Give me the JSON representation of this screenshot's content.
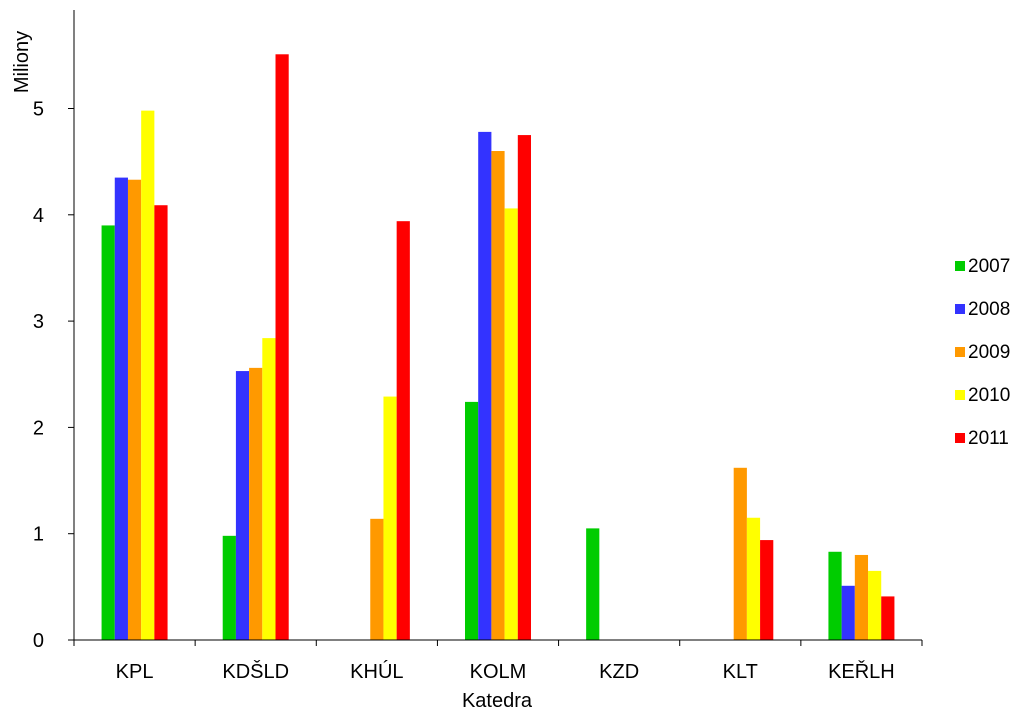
{
  "chart_data": {
    "type": "bar",
    "xlabel": "Katedra",
    "ylabel": "Miliony",
    "ylim": [
      0,
      6
    ],
    "yticks": [
      0,
      1,
      2,
      3,
      4,
      5
    ],
    "grid": false,
    "legend_position": "right",
    "categories": [
      "KPL",
      "KDŠLD",
      "KHÚL",
      "KOLM",
      "KZD",
      "KLT",
      "KEŘLH"
    ],
    "series": [
      {
        "name": "2007",
        "color": "#00cc00",
        "values": [
          3.9,
          0.98,
          0,
          2.24,
          1.05,
          0,
          0.83
        ]
      },
      {
        "name": "2008",
        "color": "#3333ff",
        "values": [
          4.35,
          2.53,
          0,
          4.78,
          0,
          0,
          0.51
        ]
      },
      {
        "name": "2009",
        "color": "#ff9900",
        "values": [
          4.33,
          2.56,
          1.14,
          4.6,
          0,
          1.62,
          0.8
        ]
      },
      {
        "name": "2010",
        "color": "#ffff00",
        "values": [
          4.98,
          2.84,
          2.29,
          4.06,
          0,
          1.15,
          0.65
        ]
      },
      {
        "name": "2011",
        "color": "#ff0000",
        "values": [
          4.09,
          5.51,
          3.94,
          4.75,
          0,
          0.94,
          0.41
        ]
      }
    ]
  }
}
